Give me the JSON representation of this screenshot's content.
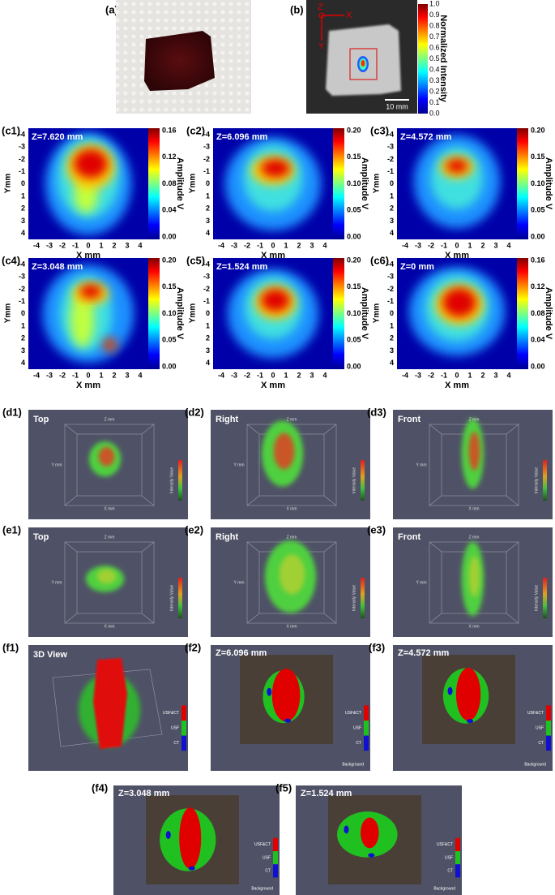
{
  "panel_a": {
    "label": "(a)"
  },
  "panel_b": {
    "label": "(b)",
    "axis_labels": [
      "Z",
      "X",
      "Y"
    ],
    "scale_bar": "10 mm",
    "colorbar_title": "Normalized Intensity",
    "colorbar_ticks": [
      "1.0",
      "0.9",
      "0.8",
      "0.7",
      "0.6",
      "0.5",
      "0.4",
      "0.3",
      "0.2",
      "0.1",
      "0.0"
    ]
  },
  "heatmaps": {
    "x_label": "X mm",
    "y_label": "Ymm",
    "colorbar_title": "Amplitude V",
    "x_ticks": [
      "-4",
      "-3",
      "-2",
      "-1",
      "0",
      "1",
      "2",
      "3",
      "4"
    ],
    "y_ticks": [
      "-4",
      "-3",
      "-2",
      "-1",
      "0",
      "1",
      "2",
      "3",
      "4"
    ],
    "panels": [
      {
        "label": "(c1)",
        "title": "Z=7.620 mm",
        "colorbar_ticks": [
          "0.16",
          "0.12",
          "0.08",
          "0.04",
          "0.00"
        ]
      },
      {
        "label": "(c2)",
        "title": "Z=6.096 mm",
        "colorbar_ticks": [
          "0.20",
          "0.15",
          "0.10",
          "0.05",
          "0.00"
        ]
      },
      {
        "label": "(c3)",
        "title": "Z=4.572 mm",
        "colorbar_ticks": [
          "0.20",
          "0.15",
          "0.10",
          "0.05",
          "0.00"
        ]
      },
      {
        "label": "(c4)",
        "title": "Z=3.048 mm",
        "colorbar_ticks": [
          "0.20",
          "0.15",
          "0.10",
          "0.05",
          "0.00"
        ]
      },
      {
        "label": "(c5)",
        "title": "Z=1.524 mm",
        "colorbar_ticks": [
          "0.20",
          "0.15",
          "0.10",
          "0.05",
          "0.00"
        ]
      },
      {
        "label": "(c6)",
        "title": "Z=0 mm",
        "colorbar_ticks": [
          "0.16",
          "0.12",
          "0.08",
          "0.04",
          "0.00"
        ]
      }
    ]
  },
  "volumes": {
    "colorbar_title": "Intensity Value",
    "axis_labels": [
      "X mm",
      "Y mm",
      "Z mm"
    ],
    "panels": [
      {
        "label": "(d1)",
        "title": "Top"
      },
      {
        "label": "(d2)",
        "title": "Right"
      },
      {
        "label": "(d3)",
        "title": "Front"
      },
      {
        "label": "(e1)",
        "title": "Top"
      },
      {
        "label": "(e2)",
        "title": "Right"
      },
      {
        "label": "(e3)",
        "title": "Front"
      }
    ]
  },
  "segmentations": {
    "legend": [
      "USF&CT",
      "USF",
      "CT"
    ],
    "background": "Background",
    "panels": [
      {
        "label": "(f1)",
        "title": "3D View"
      },
      {
        "label": "(f2)",
        "title": "Z=6.096 mm"
      },
      {
        "label": "(f3)",
        "title": "Z=4.572 mm"
      },
      {
        "label": "(f4)",
        "title": "Z=3.048 mm"
      },
      {
        "label": "(f5)",
        "title": "Z=1.524 mm"
      }
    ]
  }
}
